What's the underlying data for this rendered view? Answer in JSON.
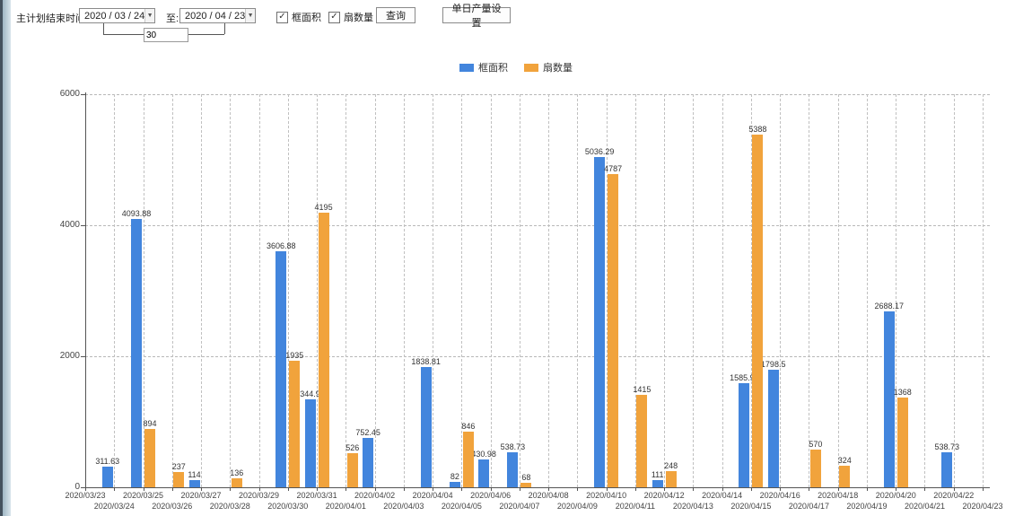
{
  "toolbar": {
    "label_plan_end": "主计划结束时间:",
    "date_from": "2020 / 03 / 24",
    "label_to": "至:",
    "date_to": "2020 / 04 / 23",
    "interval_days": "30",
    "checkbox_frame_area": "框面积",
    "checkbox_fan_count": "扇数量",
    "query_button": "查询",
    "daily_output_button": "单日产量设置"
  },
  "chart_data": {
    "type": "bar",
    "title": "",
    "xlabel": "",
    "ylabel": "",
    "ylim": [
      0,
      6000
    ],
    "yticks": [
      0,
      2000,
      4000,
      6000
    ],
    "grid": true,
    "legend_position": "top",
    "categories": [
      "2020/03/23",
      "2020/03/24",
      "2020/03/25",
      "2020/03/26",
      "2020/03/27",
      "2020/03/28",
      "2020/03/29",
      "2020/03/30",
      "2020/03/31",
      "2020/04/01",
      "2020/04/02",
      "2020/04/03",
      "2020/04/04",
      "2020/04/05",
      "2020/04/06",
      "2020/04/07",
      "2020/04/08",
      "2020/04/09",
      "2020/04/10",
      "2020/04/11",
      "2020/04/12",
      "2020/04/13",
      "2020/04/14",
      "2020/04/15",
      "2020/04/16",
      "2020/04/17",
      "2020/04/18",
      "2020/04/19",
      "2020/04/20",
      "2020/04/21",
      "2020/04/22",
      "2020/04/23"
    ],
    "series": [
      {
        "name": "框面积",
        "color": "#4285dd",
        "values": [
          null,
          311.63,
          4093.88,
          null,
          114,
          null,
          null,
          3606.88,
          1344.95,
          null,
          752.45,
          null,
          1838.81,
          82,
          430.98,
          538.73,
          null,
          null,
          5036.29,
          null,
          111,
          null,
          null,
          1585.96,
          1798.5,
          null,
          null,
          null,
          2688.17,
          null,
          538.73,
          null
        ]
      },
      {
        "name": "扇数量",
        "color": "#f1a33c",
        "values": [
          null,
          null,
          894,
          237,
          null,
          136,
          null,
          1935,
          4195,
          526,
          null,
          null,
          null,
          846,
          null,
          68,
          null,
          null,
          4787,
          1415,
          248,
          null,
          null,
          5388,
          null,
          570,
          324,
          null,
          1368,
          null,
          null,
          null
        ]
      }
    ]
  }
}
